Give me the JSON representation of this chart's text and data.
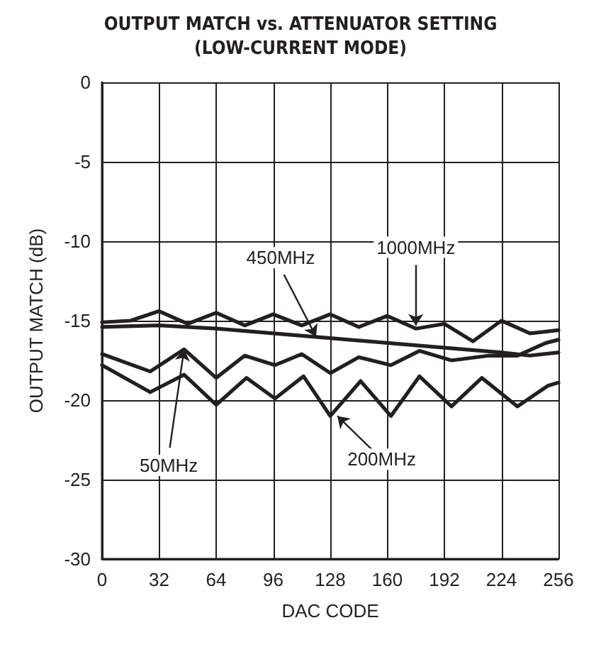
{
  "chart_data": {
    "type": "line",
    "title": "OUTPUT MATCH vs. ATTENUATOR SETTING\n(LOW-CURRENT MODE)",
    "xlabel": "DAC CODE",
    "ylabel": "OUTPUT MATCH (dB)",
    "xlim": [
      0,
      256
    ],
    "xticks": [
      0,
      32,
      64,
      96,
      128,
      160,
      192,
      224,
      256
    ],
    "ylim": [
      -30,
      0
    ],
    "yticks": [
      -30,
      -25,
      -20,
      -15,
      -10,
      -5,
      0
    ],
    "grid": true,
    "marker": "none",
    "line_style": "solid",
    "series": [
      {
        "color": "#231f20",
        "x": [
          0,
          16,
          32,
          48,
          64,
          80,
          96,
          112,
          128,
          144,
          160,
          176,
          192,
          208,
          224,
          240,
          256
        ],
        "values": [
          -15.1,
          -15.0,
          -14.4,
          -15.2,
          -14.5,
          -15.3,
          -14.6,
          -15.3,
          -14.6,
          -15.4,
          -14.7,
          -15.5,
          -15.2,
          -16.3,
          -15.0,
          -15.8,
          -15.6
        ]
      },
      {
        "color": "#231f20",
        "x": [
          0,
          32,
          64,
          96,
          128,
          160,
          192,
          224,
          240,
          256
        ],
        "values": [
          -15.4,
          -15.3,
          -15.5,
          -15.8,
          -16.1,
          -16.4,
          -16.7,
          -17.0,
          -17.2,
          -17.0
        ]
      },
      {
        "color": "#231f20",
        "x": [
          0,
          27,
          46,
          64,
          80,
          97,
          112,
          128,
          144,
          162,
          178,
          196,
          217,
          233,
          249,
          256
        ],
        "values": [
          -17.1,
          -18.2,
          -16.8,
          -18.6,
          -17.2,
          -17.8,
          -17.1,
          -18.3,
          -17.3,
          -17.8,
          -16.9,
          -17.5,
          -17.2,
          -17.2,
          -16.4,
          -16.2
        ]
      },
      {
        "color": "#231f20",
        "x": [
          0,
          27,
          46,
          64,
          81,
          97,
          113,
          128,
          145,
          162,
          178,
          196,
          213,
          233,
          250,
          256
        ],
        "values": [
          -17.8,
          -19.5,
          -18.4,
          -20.3,
          -18.6,
          -19.9,
          -18.5,
          -21.0,
          -18.8,
          -21.0,
          -18.5,
          -20.4,
          -18.6,
          -20.4,
          -19.1,
          -18.9
        ]
      }
    ],
    "annotations": [
      {
        "text": "450MHz",
        "x": 120,
        "y": -16.0
      },
      {
        "text": "1000MHz",
        "x": 176,
        "y": -15.3
      },
      {
        "text": "50MHz",
        "x": 46,
        "y": -16.8
      },
      {
        "text": "200MHz",
        "x": 132,
        "y": -21.0
      }
    ]
  }
}
